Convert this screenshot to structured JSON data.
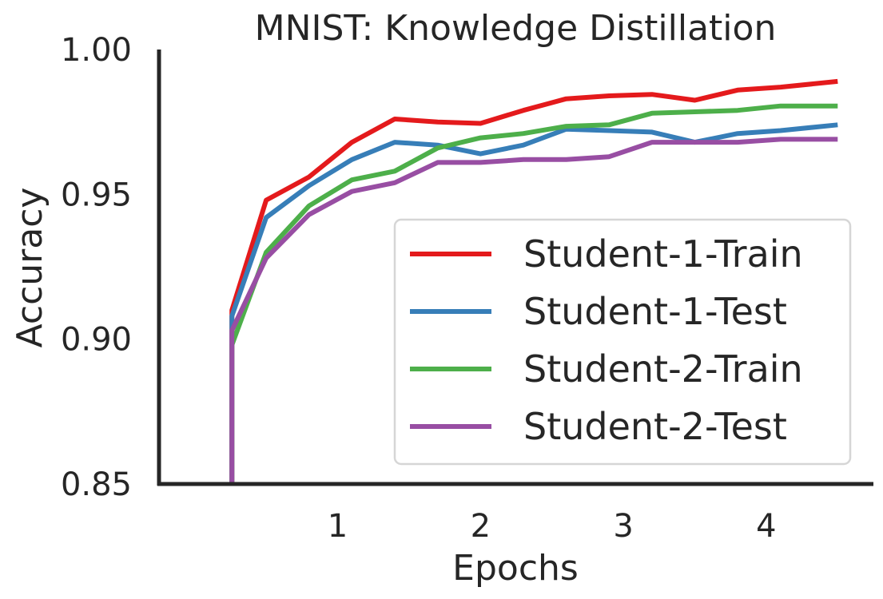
{
  "chart_data": {
    "type": "line",
    "title": "MNIST: Knowledge Distillation",
    "xlabel": "Epochs",
    "ylabel": "Accuracy",
    "xlim": [
      -0.25,
      4.75
    ],
    "ylim": [
      0.85,
      1.0
    ],
    "xticks": [
      1,
      2,
      3,
      4
    ],
    "xtick_labels": [
      "1",
      "2",
      "3",
      "4"
    ],
    "yticks": [
      0.85,
      0.9,
      0.95,
      1.0
    ],
    "ytick_labels": [
      "0.85",
      "0.90",
      "0.95",
      "1.00"
    ],
    "grid": false,
    "legend_position": "lower-right",
    "x": [
      0.26,
      0.26,
      0.5,
      0.8,
      1.1,
      1.4,
      1.7,
      2.0,
      2.3,
      2.6,
      2.9,
      3.2,
      3.5,
      3.8,
      4.1,
      4.5
    ],
    "series": [
      {
        "name": "Student-1-Train",
        "color": "#e41a1c",
        "values": [
          0.85,
          0.91,
          0.948,
          0.956,
          0.968,
          0.976,
          0.975,
          0.9745,
          0.979,
          0.983,
          0.984,
          0.9845,
          0.9825,
          0.986,
          0.987,
          0.989
        ]
      },
      {
        "name": "Student-1-Test",
        "color": "#377eb8",
        "values": [
          0.85,
          0.908,
          0.942,
          0.953,
          0.962,
          0.968,
          0.967,
          0.964,
          0.967,
          0.9725,
          0.972,
          0.9715,
          0.968,
          0.971,
          0.972,
          0.974
        ]
      },
      {
        "name": "Student-2-Train",
        "color": "#4daf4a",
        "values": [
          0.85,
          0.898,
          0.93,
          0.946,
          0.955,
          0.958,
          0.966,
          0.9695,
          0.971,
          0.9735,
          0.974,
          0.978,
          0.9785,
          0.979,
          0.9805,
          0.9805
        ]
      },
      {
        "name": "Student-2-Test",
        "color": "#984ea3",
        "values": [
          0.85,
          0.903,
          0.928,
          0.943,
          0.951,
          0.954,
          0.961,
          0.961,
          0.962,
          0.962,
          0.963,
          0.968,
          0.968,
          0.968,
          0.969,
          0.969
        ]
      }
    ]
  }
}
